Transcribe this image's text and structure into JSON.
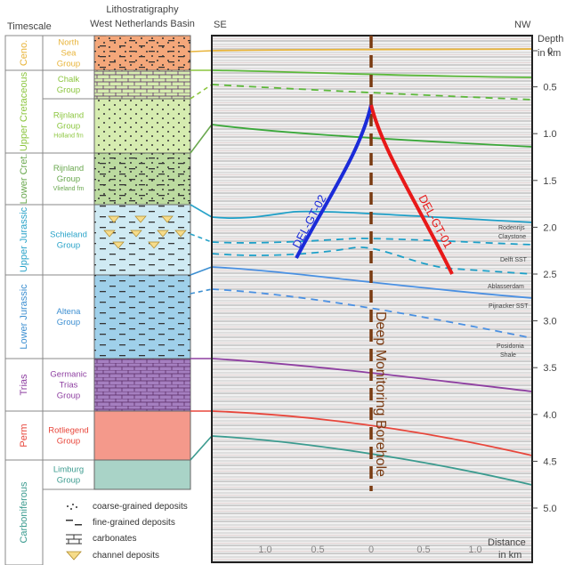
{
  "headers": {
    "timescale": "Timescale",
    "litho_line1": "Lithostratigraphy",
    "litho_line2": "West Netherlands Basin",
    "left_dir": "SE",
    "right_dir": "NW",
    "depth_line1": "Depth",
    "depth_line2": "in km",
    "distance_line1": "Distance",
    "distance_line2": "in km"
  },
  "timescale": [
    {
      "label": "Ceno.",
      "color": "#e8b43a"
    },
    {
      "label": "Upper Cretaceous",
      "color": "#8cc63f"
    },
    {
      "label": "Lower Cret.",
      "color": "#6aa84f"
    },
    {
      "label": "Upper Jurassic",
      "color": "#29a3c9"
    },
    {
      "label": "Lower Jurassic",
      "color": "#3d8fd1"
    },
    {
      "label": "Trias",
      "color": "#8e3fa1"
    },
    {
      "label": "Perm",
      "color": "#e8463b"
    },
    {
      "label": "Carboniferous",
      "color": "#3b9b8f"
    }
  ],
  "groups": [
    {
      "name1": "North",
      "name2": "Sea",
      "name3": "Group",
      "sub": "",
      "color": "#e8b43a"
    },
    {
      "name1": "Chalk",
      "name2": "Group",
      "name3": "",
      "sub": "",
      "color": "#8cc63f"
    },
    {
      "name1": "Rijnland",
      "name2": "Group",
      "name3": "",
      "sub": "Holland fm",
      "color": "#8cc63f"
    },
    {
      "name1": "Rijnland",
      "name2": "Group",
      "name3": "",
      "sub": "Vlieland fm",
      "color": "#6aa84f"
    },
    {
      "name1": "Schieland",
      "name2": "Group",
      "name3": "",
      "sub": "",
      "color": "#29a3c9"
    },
    {
      "name1": "Altena",
      "name2": "Group",
      "name3": "",
      "sub": "",
      "color": "#3d8fd1"
    },
    {
      "name1": "Germanic",
      "name2": "Trias",
      "name3": "Group",
      "sub": "",
      "color": "#8e3fa1"
    },
    {
      "name1": "Rotliegend",
      "name2": "Group",
      "name3": "",
      "sub": "",
      "color": "#e8463b"
    },
    {
      "name1": "Limburg",
      "name2": "Group",
      "name3": "",
      "sub": "",
      "color": "#3b9b8f"
    }
  ],
  "legend": [
    {
      "label": "coarse-grained deposits"
    },
    {
      "label": "fine-grained deposits"
    },
    {
      "label": "carbonates"
    },
    {
      "label": "channel deposits"
    }
  ],
  "depth_ticks": [
    "0",
    "0.5",
    "1.0",
    "1.5",
    "2.0",
    "2.5",
    "3.0",
    "3.5",
    "4.0",
    "4.5",
    "5.0"
  ],
  "distance_ticks": [
    "1.0",
    "0.5",
    "0",
    "0.5",
    "1.0"
  ],
  "wells": {
    "well_left": {
      "name": "DEL-GT-02",
      "color": "#1b2bd9"
    },
    "well_right": {
      "name": "DEL-GT-01",
      "color": "#e81919"
    },
    "borehole": {
      "name": "Deep Monitoring Borehole",
      "color": "#7a3b12"
    }
  },
  "annotations": {
    "rodenrijs1": "Rodenrijs",
    "rodenrijs2": "Claystone",
    "delft": "Delft SST",
    "ablasserdam": "Ablasserdam",
    "pijnacker": "Pijnacker SST",
    "posidonia1": "Posidonia",
    "posidonia2": "Shale"
  }
}
